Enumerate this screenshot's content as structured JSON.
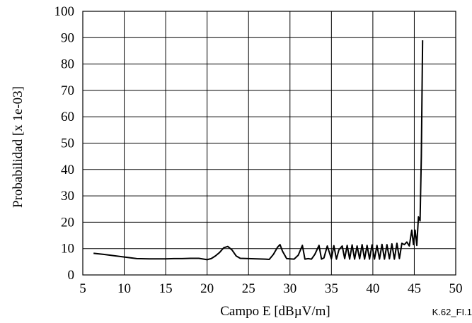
{
  "chart_data": {
    "type": "line",
    "xlabel": "Campo E [dBµV/m]",
    "ylabel": "Probabilidad [x 1e-03]",
    "xlim": [
      5,
      50
    ],
    "ylim": [
      0,
      100
    ],
    "x_ticks": [
      5,
      10,
      15,
      20,
      25,
      30,
      35,
      40,
      45,
      50
    ],
    "y_ticks": [
      0,
      10,
      20,
      30,
      40,
      50,
      60,
      70,
      80,
      90,
      100
    ],
    "grid": true,
    "legend": "none",
    "line_color": "#000000",
    "series": [
      {
        "x": [
          6.3,
          7.5,
          9,
          10,
          11,
          11.5,
          13,
          14,
          15,
          16,
          17,
          18,
          19,
          20,
          20.5,
          21,
          21.5,
          22,
          22.5,
          23,
          23.5,
          24,
          25,
          26,
          27,
          27.5,
          28,
          28.5,
          28.8,
          29.1,
          29.6,
          30,
          30.5,
          31,
          31.5,
          31.8,
          32.2,
          32.6,
          33,
          33.5,
          33.8,
          34.1,
          34.5,
          35,
          35.3,
          35.6,
          35.9,
          36.3,
          36.6,
          36.9,
          37.2,
          37.5,
          37.8,
          38.1,
          38.4,
          38.7,
          39,
          39.3,
          39.6,
          39.9,
          40.2,
          40.5,
          40.8,
          41.1,
          41.4,
          41.7,
          42,
          42.3,
          42.6,
          42.9,
          43.2,
          43.5,
          43.8,
          44.1,
          44.4,
          44.7,
          44.9,
          45.1,
          45.3,
          45.5,
          45.7,
          45.85,
          46
        ],
        "y": [
          8.2,
          7.8,
          7.2,
          6.8,
          6.4,
          6.2,
          6.1,
          6.1,
          6.1,
          6.2,
          6.2,
          6.3,
          6.3,
          5.8,
          6.2,
          7.2,
          8.5,
          10.3,
          10.8,
          9.5,
          7.2,
          6.3,
          6.2,
          6.1,
          6.0,
          5.9,
          7.8,
          10.5,
          11.5,
          9.0,
          6.2,
          6.1,
          6.0,
          7.5,
          11.2,
          6.0,
          6.2,
          6.0,
          7.8,
          11.2,
          6.0,
          6.5,
          11.0,
          6.1,
          11.1,
          6.0,
          9.5,
          11.0,
          6.2,
          11.2,
          6.0,
          11.4,
          6.0,
          11.0,
          6.1,
          11.5,
          6.0,
          11.2,
          6.0,
          11.4,
          6.0,
          11.2,
          6.0,
          11.6,
          6.0,
          11.5,
          6.1,
          11.8,
          6.0,
          12.0,
          6.2,
          12.0,
          11.5,
          12.5,
          11.0,
          17.0,
          11.5,
          17.0,
          11.2,
          22.0,
          20.5,
          45.0,
          89.0
        ]
      }
    ]
  },
  "figure_id": "K.62_FI.1"
}
